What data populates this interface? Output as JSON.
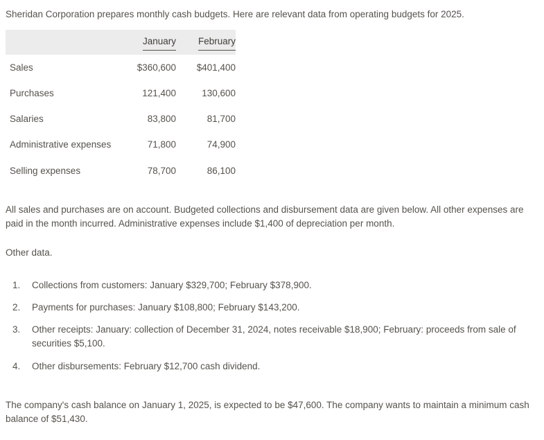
{
  "intro": "Sheridan Corporation prepares monthly cash budgets. Here are relevant data from operating budgets for 2025.",
  "table": {
    "columns": [
      "January",
      "February"
    ],
    "rows": [
      {
        "label": "Sales",
        "january": "$360,600",
        "february": "$401,400"
      },
      {
        "label": "Purchases",
        "january": "121,400",
        "february": "130,600"
      },
      {
        "label": "Salaries",
        "january": "83,800",
        "february": "81,700"
      },
      {
        "label": "Administrative expenses",
        "january": "71,800",
        "february": "74,900"
      },
      {
        "label": "Selling expenses",
        "january": "78,700",
        "february": "86,100"
      }
    ]
  },
  "paragraph_accounts": "All sales and purchases are on account. Budgeted collections and disbursement data are given below. All other expenses are paid in the month incurred. Administrative expenses include $1,400 of depreciation per month.",
  "other_data_label": "Other data.",
  "list": [
    {
      "number": "1.",
      "text": "Collections from customers: January $329,700; February $378,900."
    },
    {
      "number": "2.",
      "text": "Payments for purchases: January $108,800; February $143,200."
    },
    {
      "number": "3.",
      "text": "Other receipts: January: collection of December 31, 2024, notes receivable $18,900; February: proceeds from sale of securities $5,100."
    },
    {
      "number": "4.",
      "text": "Other disbursements: February $12,700 cash dividend."
    }
  ],
  "closing": "The company's cash balance on January 1, 2025, is expected to be $47,600. The company wants to maintain a minimum cash balance of $51,430."
}
